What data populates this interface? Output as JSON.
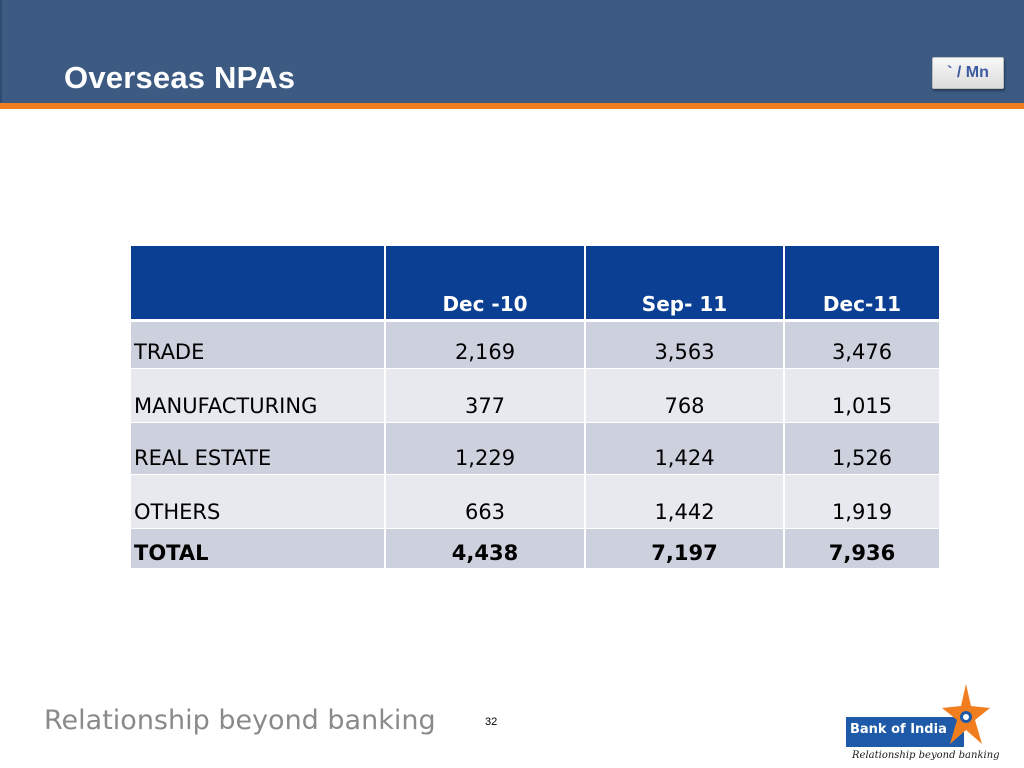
{
  "header": {
    "title": "Overseas NPAs",
    "unit_badge": "` / Mn",
    "colors": {
      "banner": "#3c5a82",
      "accent_line": "#f07d1e"
    }
  },
  "table": {
    "columns": [
      "",
      "Dec -10",
      "Sep- 11",
      "Dec-11"
    ],
    "rows": [
      {
        "label": "TRADE",
        "values": [
          "2,169",
          "3,563",
          "3,476"
        ]
      },
      {
        "label": "MANUFACTURING",
        "values": [
          "377",
          "768",
          "1,015"
        ]
      },
      {
        "label": "REAL ESTATE",
        "values": [
          "1,229",
          "1,424",
          "1,526"
        ]
      },
      {
        "label": "OTHERS",
        "values": [
          "663",
          "1,442",
          "1,919"
        ]
      }
    ],
    "total": {
      "label": "TOTAL",
      "values": [
        "4,438",
        "7,197",
        "7,936"
      ]
    },
    "colors": {
      "header": "#0a3f93",
      "row_dark": "#cdd1de",
      "row_light": "#e7e9ef"
    }
  },
  "footer": {
    "tagline": "Relationship beyond banking",
    "page_number": "32",
    "logo": {
      "name": "Bank of India",
      "tagline": "Relationship beyond banking",
      "icon": "star-icon"
    }
  }
}
